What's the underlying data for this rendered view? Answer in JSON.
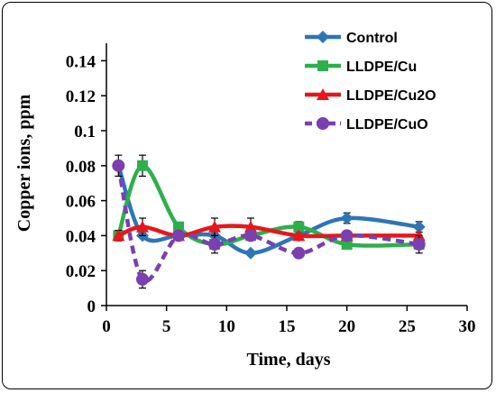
{
  "chart_data": {
    "type": "line",
    "xlabel": "Time, days",
    "ylabel": "Copper ions, ppm",
    "xlim": [
      0,
      30
    ],
    "ylim": [
      0,
      0.15
    ],
    "xticks": [
      "0",
      "5",
      "10",
      "15",
      "20",
      "25",
      "30"
    ],
    "yticks": [
      "0",
      "0.02",
      "0.04",
      "0.06",
      "0.08",
      "0.1",
      "0.12",
      "0.14"
    ],
    "grid": false,
    "legend_position": "top-right",
    "x": [
      1,
      3,
      6,
      9,
      12,
      16,
      20,
      26
    ],
    "series": [
      {
        "name": "Control",
        "marker": "diamond",
        "color": "#2E75B6",
        "dash": false,
        "values": [
          0.08,
          0.04,
          0.04,
          0.04,
          0.03,
          0.04,
          0.05,
          0.045
        ],
        "errors": [
          0,
          0,
          0,
          0,
          0,
          0,
          0.003,
          0.003
        ]
      },
      {
        "name": "LLDPE/Cu",
        "marker": "square",
        "color": "#2DB04C",
        "dash": false,
        "values": [
          0.04,
          0.08,
          0.045,
          0.035,
          0.04,
          0.045,
          0.035,
          0.035
        ],
        "errors": [
          0,
          0.006,
          0,
          0,
          0,
          0.003,
          0,
          0
        ]
      },
      {
        "name": "LLDPE/Cu2O",
        "marker": "triangle",
        "color": "#E8161B",
        "dash": false,
        "values": [
          0.04,
          0.045,
          0.04,
          0.045,
          0.045,
          0.04,
          0.04,
          0.04
        ],
        "errors": [
          0.003,
          0.005,
          0,
          0.005,
          0.005,
          0,
          0,
          0
        ]
      },
      {
        "name": "LLDPE/CuO",
        "marker": "circle",
        "color": "#7B3FB0",
        "dash": true,
        "values": [
          0.08,
          0.015,
          0.04,
          0.035,
          0.04,
          0.03,
          0.04,
          0.035
        ],
        "errors": [
          0.006,
          0.005,
          0,
          0.005,
          0,
          0,
          0,
          0.005
        ]
      }
    ]
  }
}
